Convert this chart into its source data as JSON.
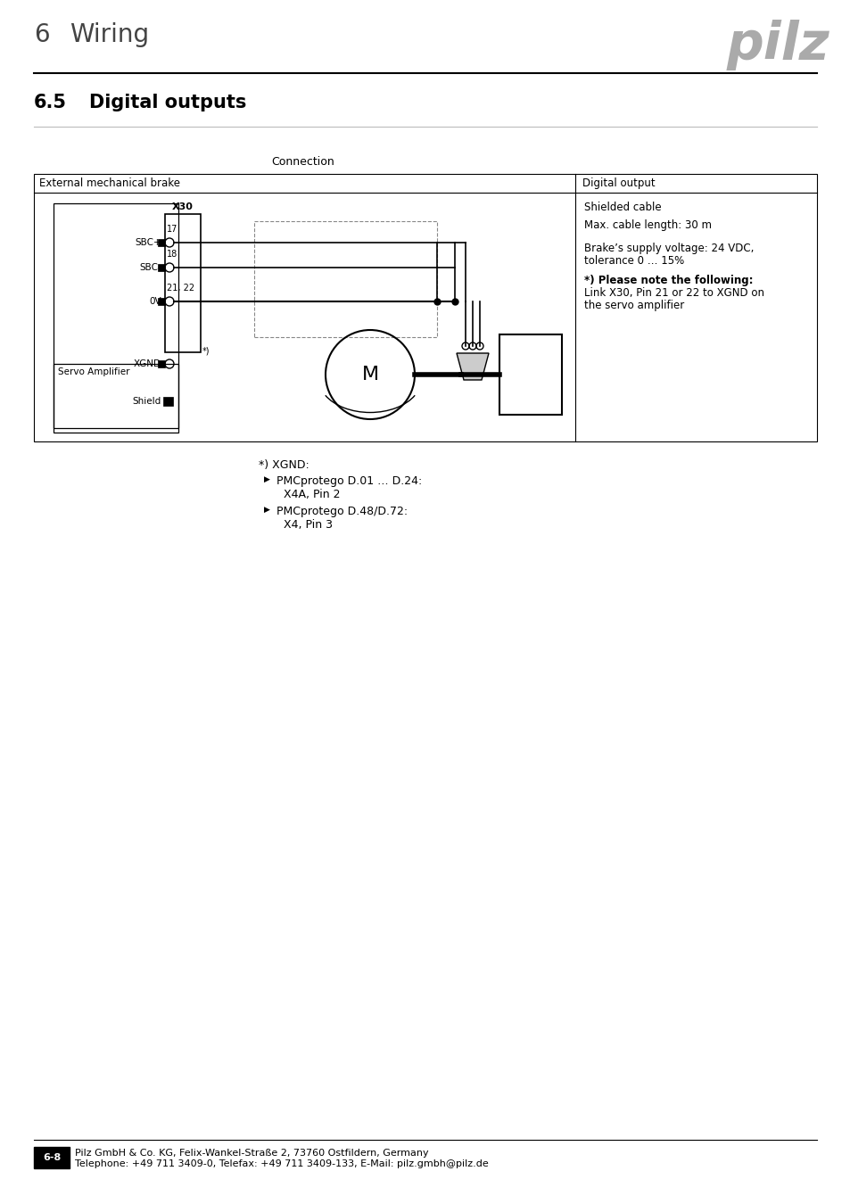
{
  "page_title_number": "6",
  "page_title_text": "Wiring",
  "section_number": "6.5",
  "section_title": "Digital outputs",
  "pilz_logo_color": "#aaaaaa",
  "connection_label": "Connection",
  "table_header_left": "External mechanical brake",
  "table_header_right": "Digital output",
  "right_col_text": [
    [
      "Shielded cable",
      false,
      0
    ],
    [
      "",
      false,
      0
    ],
    [
      "Max. cable length: 30 m",
      false,
      18
    ],
    [
      "",
      false,
      0
    ],
    [
      "Brake’s supply voltage: 24 VDC,",
      false,
      18
    ],
    [
      "tolerance 0 … 15%",
      false,
      0
    ],
    [
      "",
      false,
      0
    ],
    [
      "*) Please note the following:",
      true,
      18
    ],
    [
      "Link X30, Pin 21 or 22 to XGND on",
      false,
      0
    ],
    [
      "the servo amplifier",
      false,
      0
    ]
  ],
  "xgnd_note_title": "*) XGND:",
  "xgnd_bullets": [
    [
      "PMCprotego D.01 … D.24:",
      "X4A, Pin 2"
    ],
    [
      "PMCprotego D.48/D.72:",
      "X4, Pin 3"
    ]
  ],
  "footer_line1": "Pilz GmbH & Co. KG, Felix-Wankel-Straße 2, 73760 Ostfildern, Germany",
  "footer_line2": "Telephone: +49 711 3409-0, Telefax: +49 711 3409-133, E-Mail: pilz.gmbh@pilz.de",
  "footer_page_label": "6-8"
}
